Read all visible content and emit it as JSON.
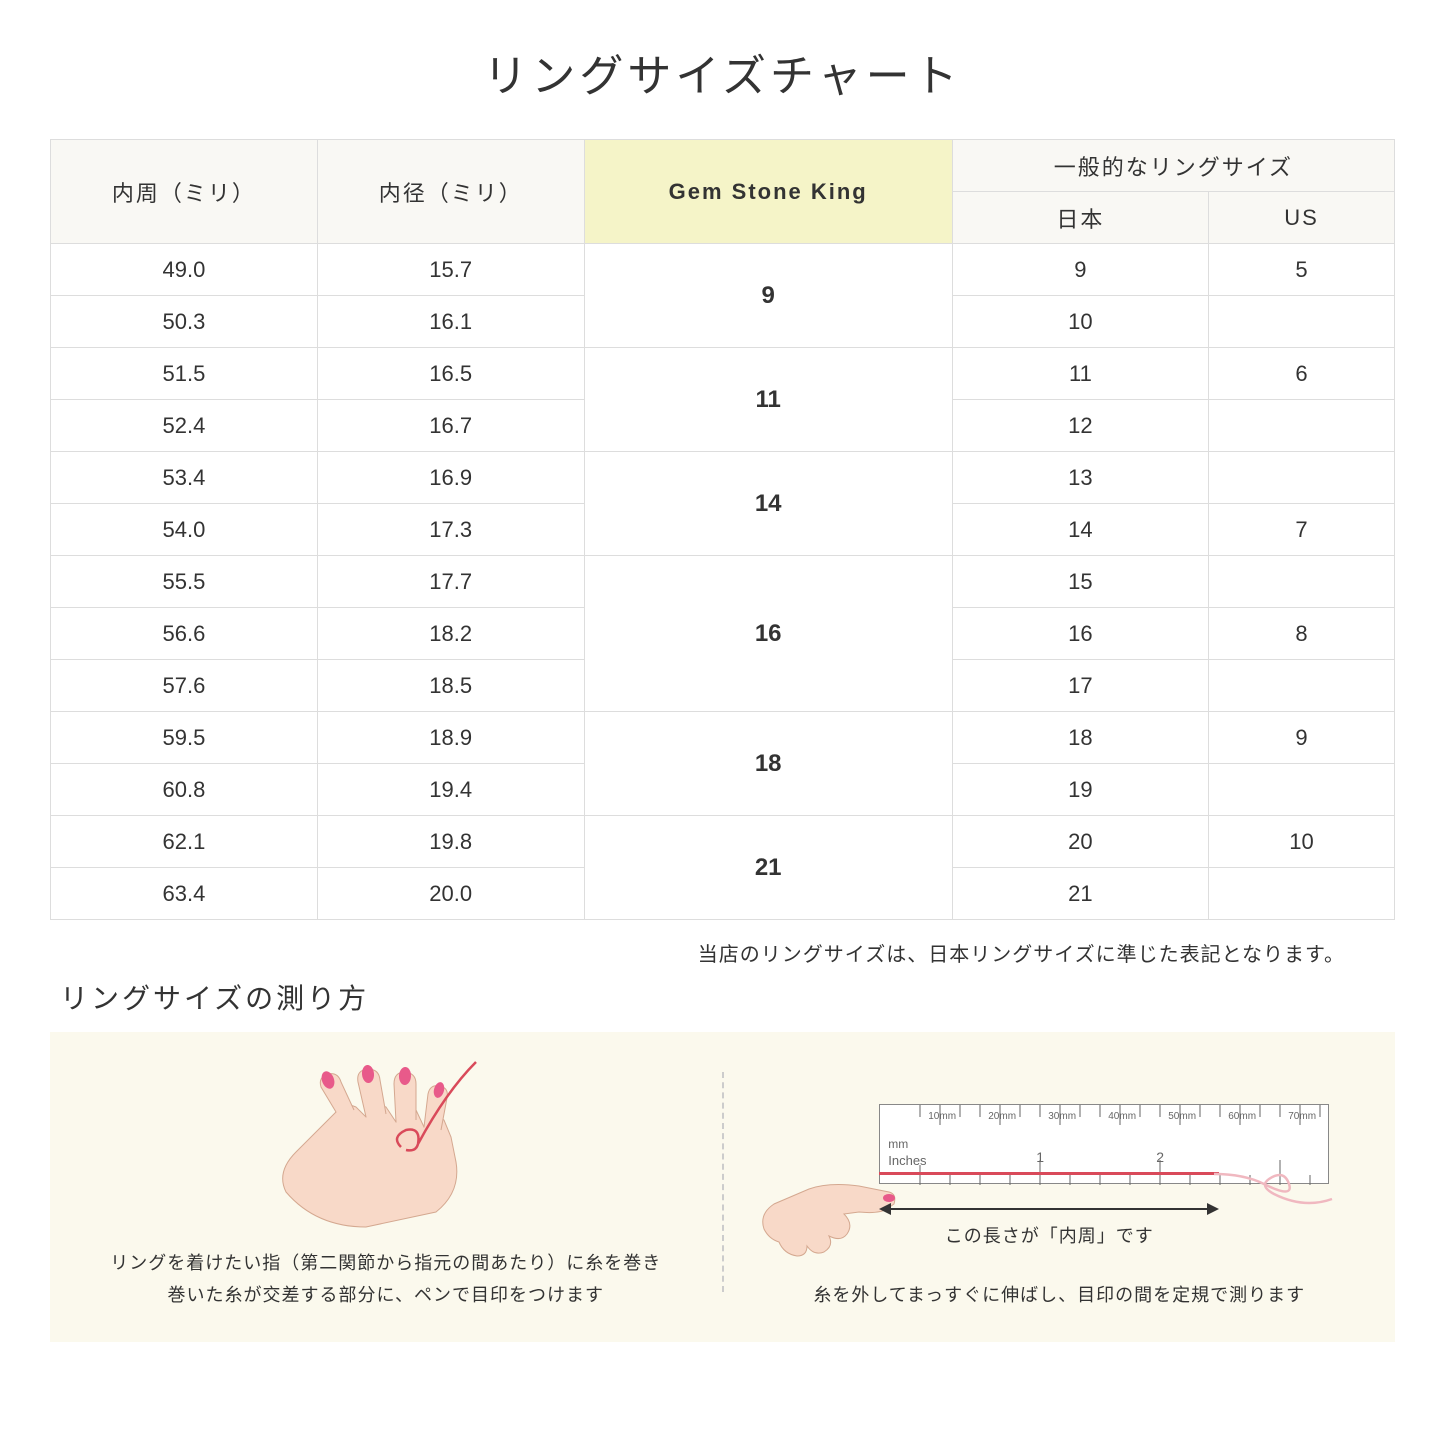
{
  "title": "リングサイズチャート",
  "headers": {
    "circumference": "内周（ミリ）",
    "diameter": "内径（ミリ）",
    "gsk": "Gem Stone King",
    "general": "一般的なリングサイズ",
    "japan": "日本",
    "us": "US"
  },
  "groups": [
    {
      "gsk": "9",
      "rows": [
        {
          "c": "49.0",
          "d": "15.7",
          "jp": "9",
          "us": "5"
        },
        {
          "c": "50.3",
          "d": "16.1",
          "jp": "10",
          "us": ""
        }
      ]
    },
    {
      "gsk": "11",
      "rows": [
        {
          "c": "51.5",
          "d": "16.5",
          "jp": "11",
          "us": "6"
        },
        {
          "c": "52.4",
          "d": "16.7",
          "jp": "12",
          "us": ""
        }
      ]
    },
    {
      "gsk": "14",
      "rows": [
        {
          "c": "53.4",
          "d": "16.9",
          "jp": "13",
          "us": ""
        },
        {
          "c": "54.0",
          "d": "17.3",
          "jp": "14",
          "us": "7"
        }
      ]
    },
    {
      "gsk": "16",
      "rows": [
        {
          "c": "55.5",
          "d": "17.7",
          "jp": "15",
          "us": ""
        },
        {
          "c": "56.6",
          "d": "18.2",
          "jp": "16",
          "us": "8"
        },
        {
          "c": "57.6",
          "d": "18.5",
          "jp": "17",
          "us": ""
        }
      ]
    },
    {
      "gsk": "18",
      "rows": [
        {
          "c": "59.5",
          "d": "18.9",
          "jp": "18",
          "us": "9"
        },
        {
          "c": "60.8",
          "d": "19.4",
          "jp": "19",
          "us": ""
        }
      ]
    },
    {
      "gsk": "21",
      "rows": [
        {
          "c": "62.1",
          "d": "19.8",
          "jp": "20",
          "us": "10"
        },
        {
          "c": "63.4",
          "d": "20.0",
          "jp": "21",
          "us": ""
        }
      ]
    }
  ],
  "note": "当店のリングサイズは、日本リングサイズに準じた表記となります。",
  "subtitle": "リングサイズの測り方",
  "instruction_left": "リングを着けたい指（第二関節から指元の間あたり）に糸を巻き\n巻いた糸が交差する部分に、ペンで目印をつけます",
  "instruction_right": "糸を外してまっすぐに伸ばし、目印の間を定規で測ります",
  "ruler_mm_label": "mm",
  "ruler_in_label": "Inches",
  "ruler_mm_marks": [
    "10mm",
    "20mm",
    "30mm",
    "40mm",
    "50mm",
    "60mm",
    "70mm"
  ],
  "ruler_in_marks": [
    "1",
    "2"
  ],
  "arrow_label": "この長さが「内周」です",
  "colors": {
    "header_bg": "#f9f8f4",
    "highlight_bg": "#f5f4c8",
    "border": "#dddddd",
    "panel_bg": "#fbf9ed",
    "skin": "#f8d9c8",
    "nail": "#e85a8a",
    "thread": "#d94a5a",
    "text": "#333333"
  }
}
